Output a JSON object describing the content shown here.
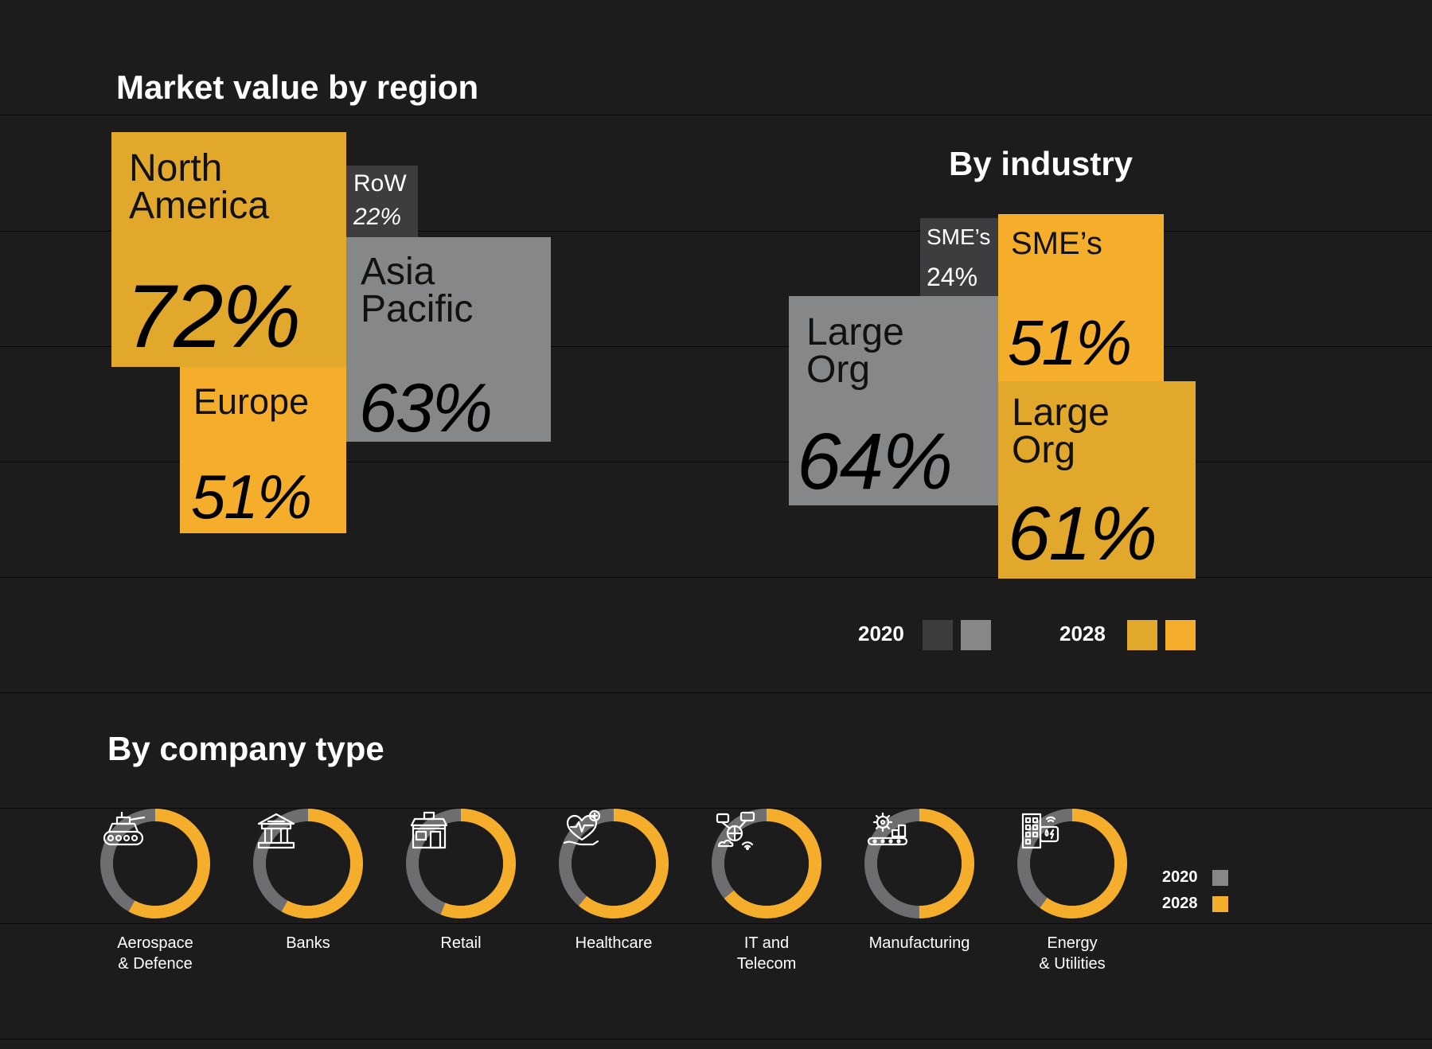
{
  "colors": {
    "background": "#1c1c1d",
    "gold_2028_dark": "#e1a82b",
    "gold_2028_light": "#f5ae2c",
    "gray_2020_dark": "#3d3d3f",
    "gray_2020_light": "#858789",
    "donut_gray": "#6e6e70"
  },
  "region": {
    "title": "Market value by region",
    "north_america": {
      "label": "North\nAmerica",
      "value": "72%"
    },
    "europe": {
      "label": "Europe",
      "value": "51%"
    },
    "asia_pacific": {
      "label": "Asia\nPacific",
      "value": "63%"
    },
    "row": {
      "label": "RoW",
      "value": "22%"
    }
  },
  "industry": {
    "title": "By industry",
    "sme_2020": {
      "label": "SME’s",
      "value": "24%"
    },
    "large_2020": {
      "label": "Large\nOrg",
      "value": "64%"
    },
    "sme_2028": {
      "label": "SME’s",
      "value": "51%"
    },
    "large_2028": {
      "label": "Large\nOrg",
      "value": "61%"
    },
    "legend": {
      "year_2020": "2020",
      "year_2028": "2028"
    }
  },
  "company": {
    "title": "By company type",
    "legend": {
      "year_2020": "2020",
      "year_2028": "2028"
    }
  },
  "chart_data": [
    {
      "type": "table",
      "title": "Market value by region",
      "categories": [
        "North America",
        "Europe",
        "Asia Pacific",
        "RoW"
      ],
      "values": [
        72,
        51,
        63,
        22
      ],
      "unit": "%"
    },
    {
      "type": "bar",
      "title": "By industry",
      "categories": [
        "SME’s",
        "Large Org"
      ],
      "series": [
        {
          "name": "2020",
          "values": [
            24,
            64
          ]
        },
        {
          "name": "2028",
          "values": [
            51,
            61
          ]
        }
      ],
      "unit": "%"
    },
    {
      "type": "pie",
      "title": "By company type",
      "categories": [
        "Aerospace\n& Defence",
        "Banks",
        "Retail",
        "Healthcare",
        "IT and\nTelecom",
        "Manufacturing",
        "Energy\n& Utilities"
      ],
      "icons": [
        "tank-icon",
        "bank-icon",
        "shop-icon",
        "healthcare-icon",
        "it-telecom-icon",
        "manufacturing-icon",
        "energy-building-icon"
      ],
      "series": [
        {
          "name": "2020",
          "values": [
            42,
            42,
            44,
            39,
            36,
            50,
            40
          ]
        },
        {
          "name": "2028",
          "values": [
            58,
            58,
            56,
            61,
            64,
            50,
            60
          ]
        }
      ],
      "legend": "right",
      "unit": "%"
    }
  ]
}
